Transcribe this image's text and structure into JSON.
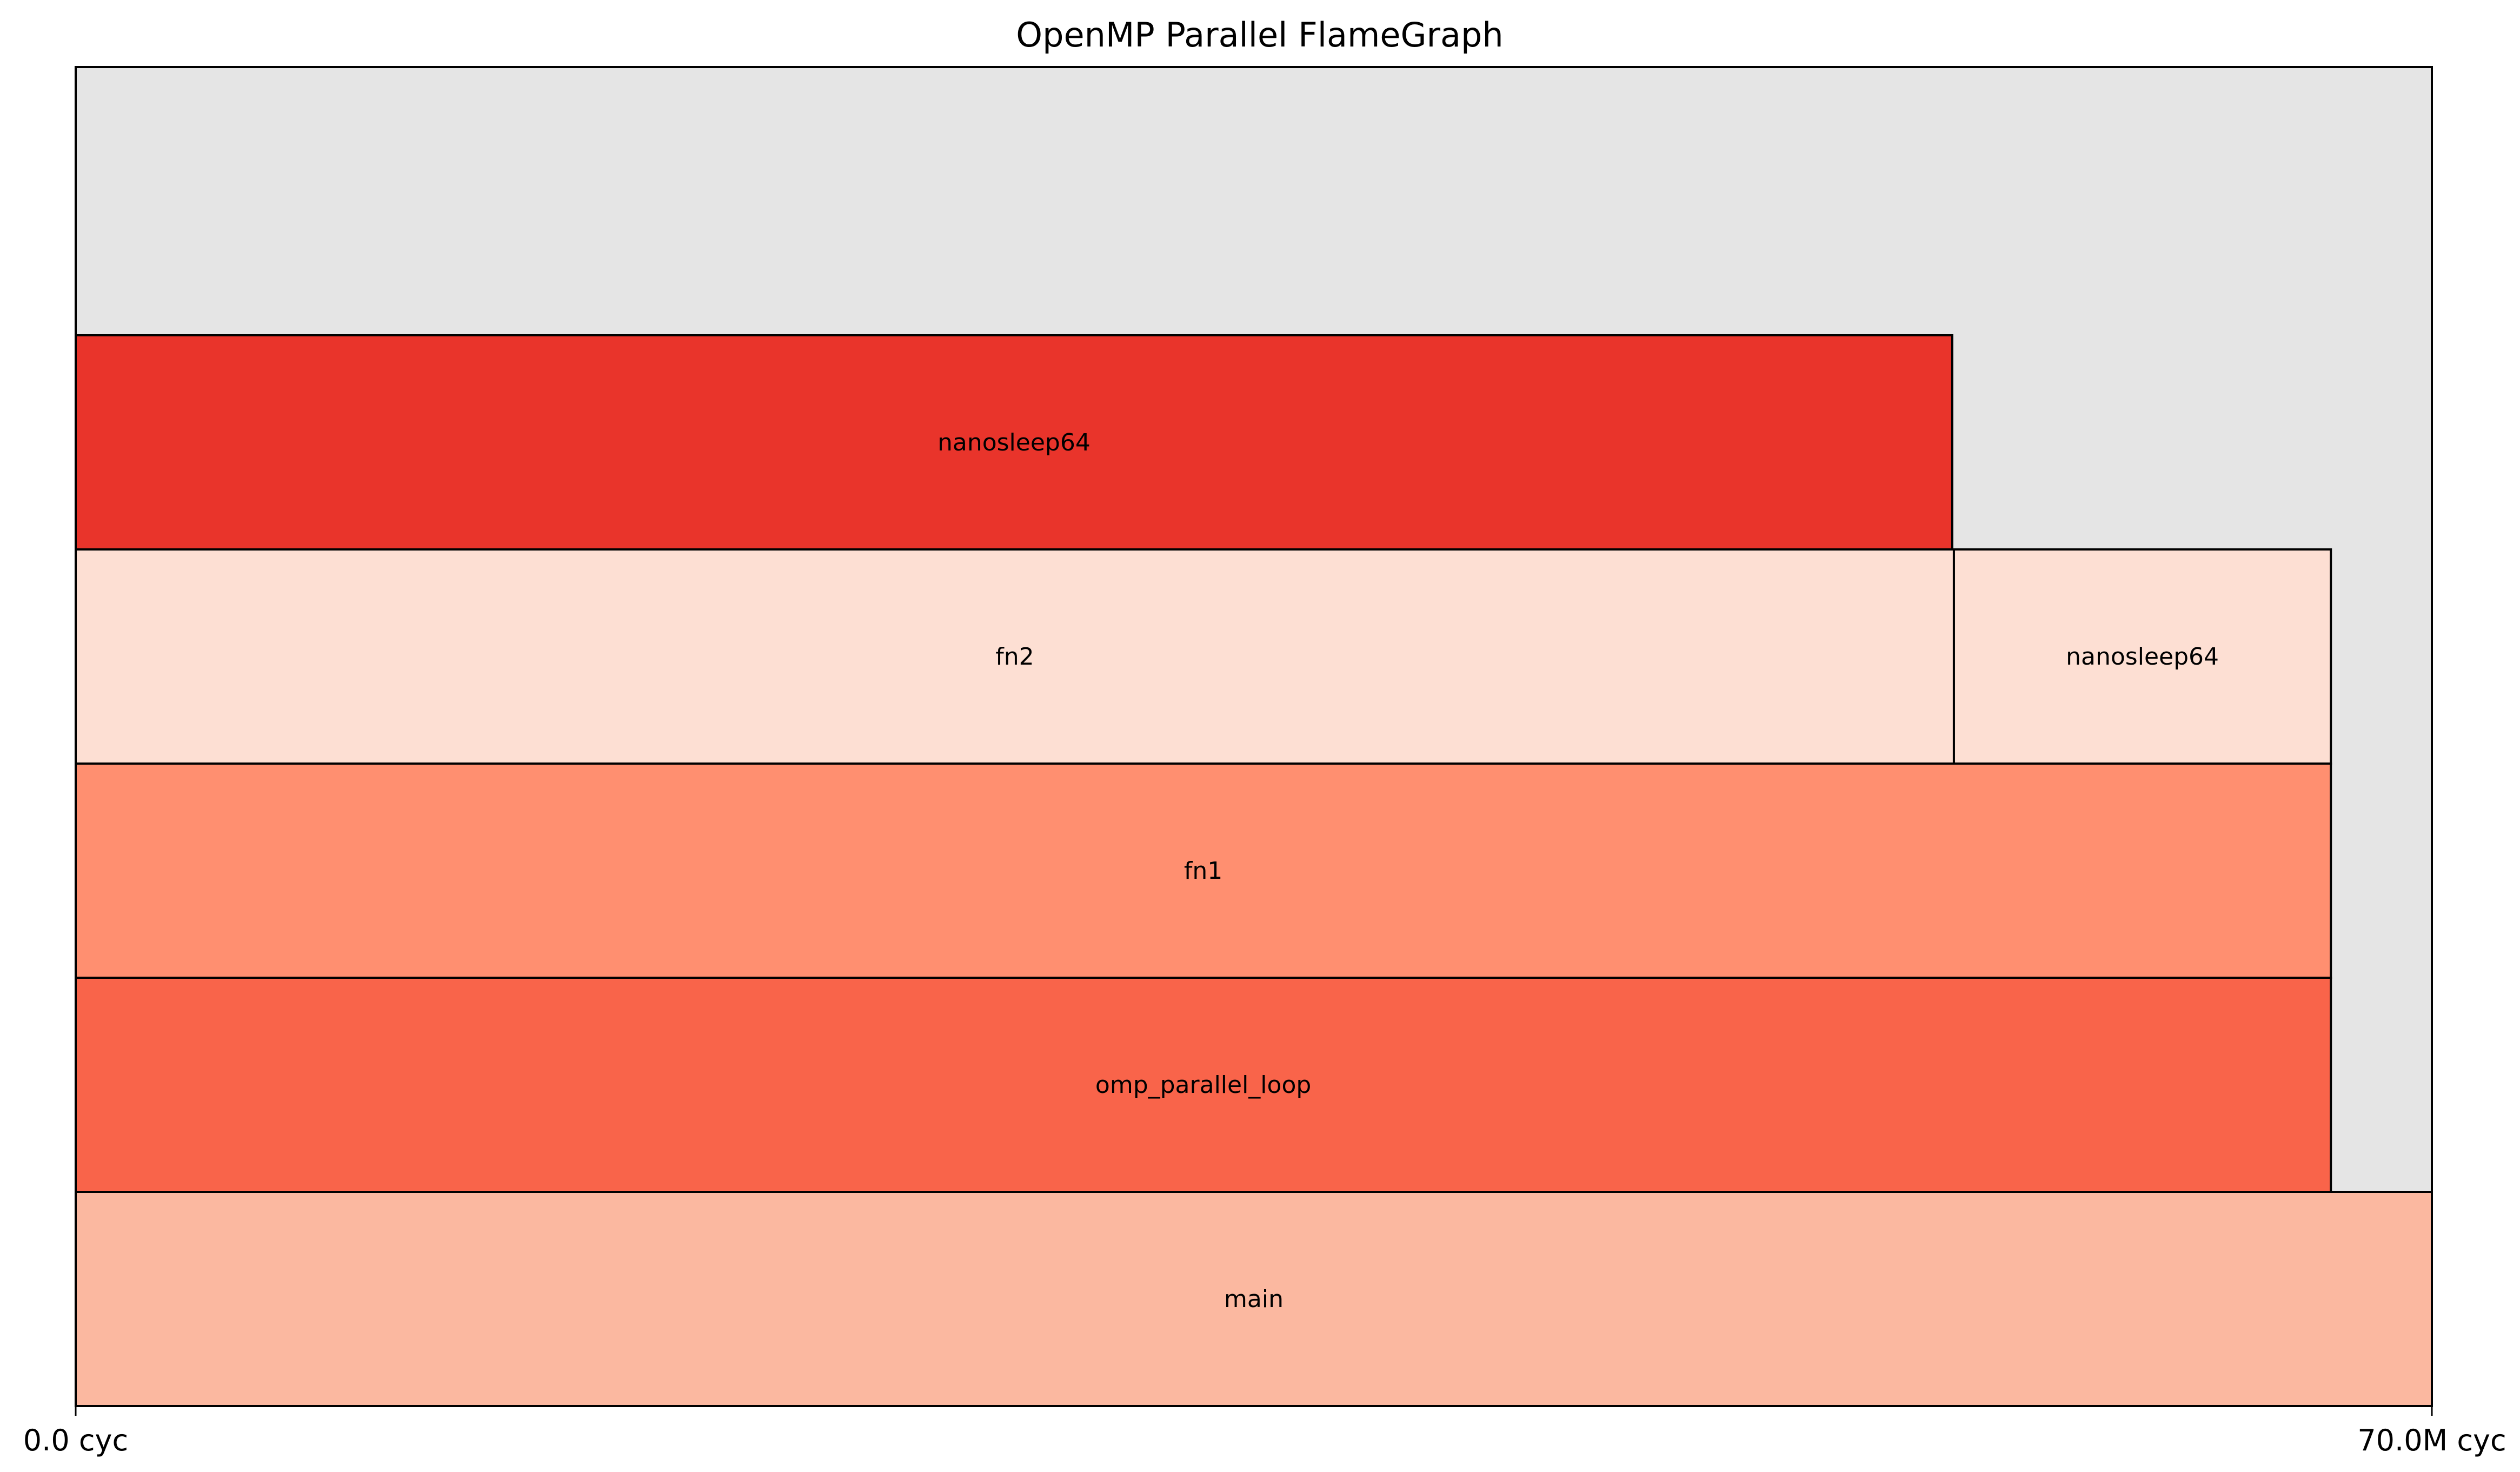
{
  "chart_data": {
    "type": "flamegraph",
    "title": "OpenMP Parallel FlameGraph",
    "x_unit": "cyc",
    "xlim": [
      0,
      70000000
    ],
    "x_tick_labels": [
      "0.0 cyc",
      "70.0M cyc"
    ],
    "background_color": "#e5e5e5",
    "frames": [
      {
        "name": "main",
        "level": 0,
        "start": 0,
        "end": 70000000,
        "color": "#fbb8a0"
      },
      {
        "name": "omp_parallel_loop",
        "level": 1,
        "start": 0,
        "end": 67000000,
        "color": "#f9644a"
      },
      {
        "name": "fn1",
        "level": 2,
        "start": 0,
        "end": 67000000,
        "color": "#ff8f70"
      },
      {
        "name": "fn2",
        "level": 3,
        "start": 0,
        "end": 55800000,
        "color": "#fddfd3"
      },
      {
        "name": "nanosleep64",
        "level": 3,
        "start": 55800000,
        "end": 67000000,
        "color": "#fddfd3"
      },
      {
        "name": "nanosleep64",
        "level": 4,
        "start": 0,
        "end": 55750000,
        "color": "#e9342b"
      }
    ]
  }
}
